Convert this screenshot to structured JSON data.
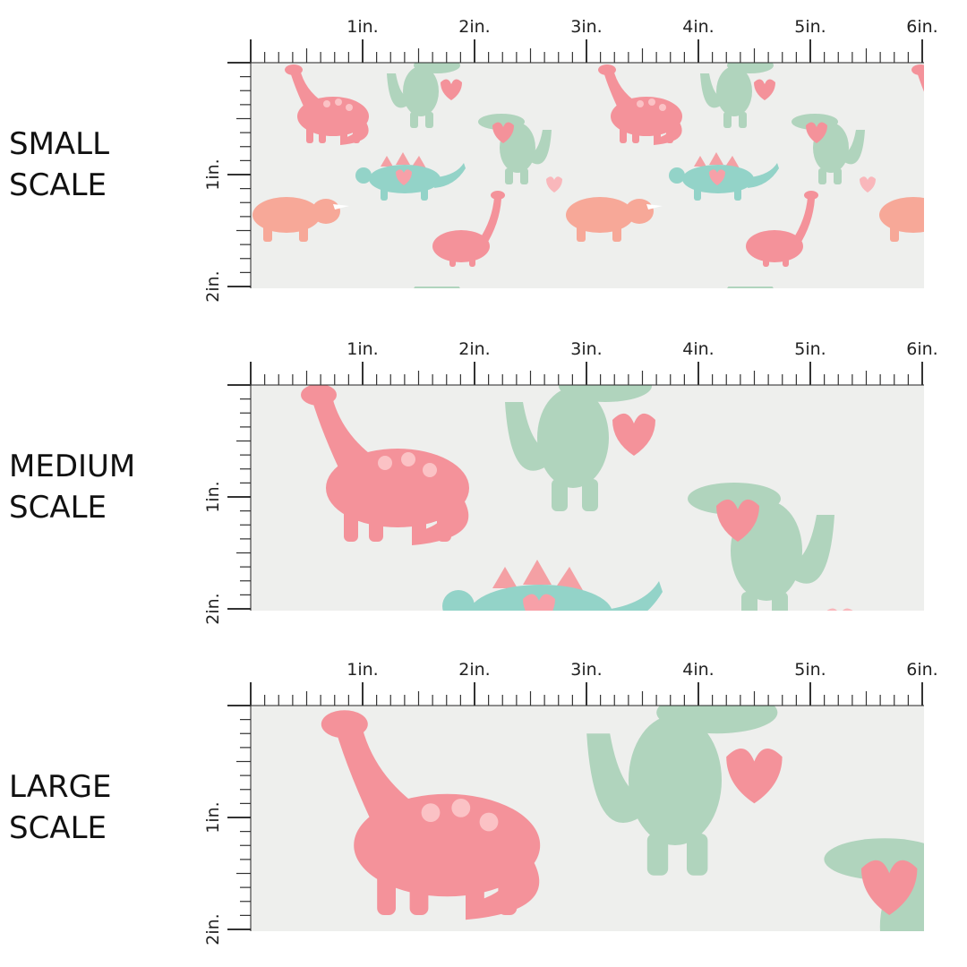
{
  "panels": [
    {
      "label": [
        "SMALL",
        "SCALE"
      ],
      "ruler": {
        "x_labels": [
          "1in.",
          "2in.",
          "3in.",
          "4in.",
          "5in.",
          "6in."
        ],
        "y_labels": [
          "1in.",
          "2in."
        ]
      }
    },
    {
      "label": [
        "MEDIUM",
        "SCALE"
      ],
      "ruler": {
        "x_labels": [
          "1in.",
          "2in.",
          "3in.",
          "4in.",
          "5in.",
          "6in."
        ],
        "y_labels": [
          "1in.",
          "2in."
        ]
      }
    },
    {
      "label": [
        "LARGE",
        "SCALE"
      ],
      "ruler": {
        "x_labels": [
          "1in.",
          "2in.",
          "3in.",
          "4in.",
          "5in.",
          "6in."
        ],
        "y_labels": [
          "1in.",
          "2in."
        ]
      }
    }
  ]
}
